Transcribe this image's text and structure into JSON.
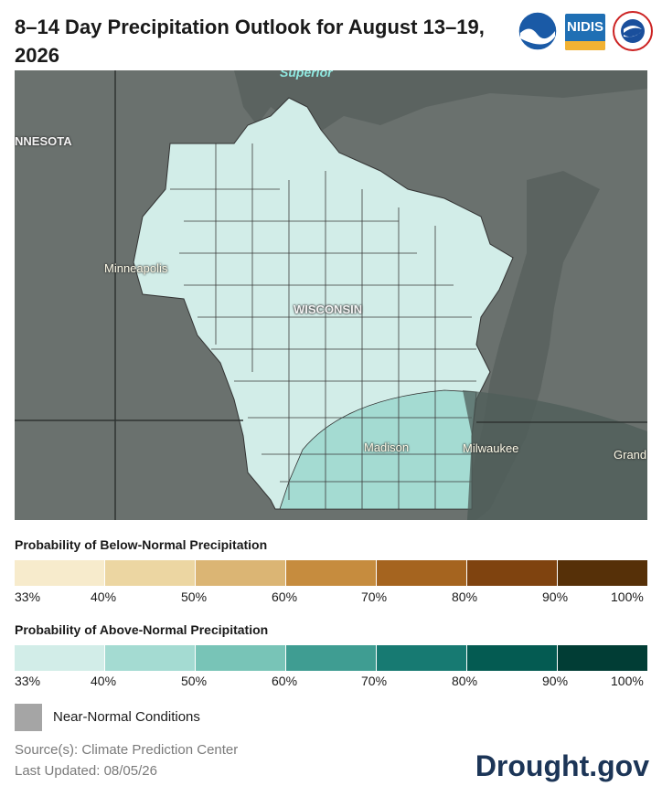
{
  "title": "8–14 Day Precipitation Outlook for August 13–19, 2026",
  "logos": {
    "noaa": "NOAA",
    "nidis": "NIDIS",
    "nws": "National Weather Service"
  },
  "map": {
    "labels": {
      "lake": "Superior",
      "state_mn": "NNESOTA",
      "state_wi": "WISCONSIN"
    },
    "cities": [
      "Minneapolis",
      "Madison",
      "Milwaukee",
      "Grand"
    ]
  },
  "legend_below": {
    "title": "Probability of Below-Normal Precipitation",
    "colors": [
      "#f7ebcc",
      "#ecd6a2",
      "#dbb574",
      "#c68c3e",
      "#a5641f",
      "#7f430f",
      "#563008"
    ],
    "ticks": [
      "33%",
      "40%",
      "50%",
      "60%",
      "70%",
      "80%",
      "90%",
      "100%"
    ]
  },
  "legend_above": {
    "title": "Probability of Above-Normal Precipitation",
    "colors": [
      "#d2ede8",
      "#a4dbd2",
      "#78c4b7",
      "#3f9d92",
      "#177a72",
      "#045b52",
      "#013d35"
    ],
    "ticks": [
      "33%",
      "40%",
      "50%",
      "60%",
      "70%",
      "80%",
      "90%",
      "100%"
    ]
  },
  "near_normal": {
    "label": "Near-Normal Conditions",
    "color": "#a5a5a5"
  },
  "source": "Source(s): Climate Prediction Center",
  "updated": "Last Updated: 08/05/26",
  "brand": "Drought.gov"
}
